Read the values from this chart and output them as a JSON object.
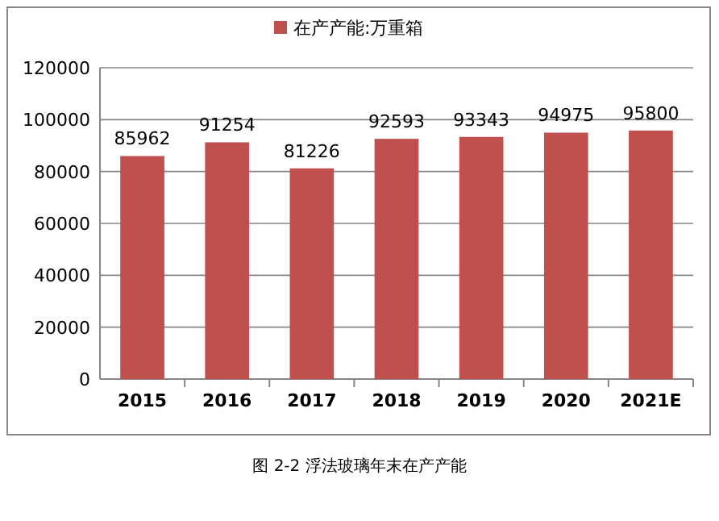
{
  "chart_data": {
    "type": "bar",
    "categories": [
      "2015",
      "2016",
      "2017",
      "2018",
      "2019",
      "2020",
      "2021E"
    ],
    "series": [
      {
        "name": "在产产能:万重箱",
        "color": "#c0504d",
        "values": [
          85962,
          91254,
          81226,
          92593,
          93343,
          94975,
          95800
        ]
      }
    ],
    "ylim": [
      0,
      120000
    ],
    "yticks": [
      0,
      20000,
      40000,
      60000,
      80000,
      100000,
      120000
    ],
    "grid": "y",
    "legend": "top",
    "data_labels": true,
    "annotations": [
      "图 2-2 浮法玻璃年末在产产能"
    ]
  }
}
